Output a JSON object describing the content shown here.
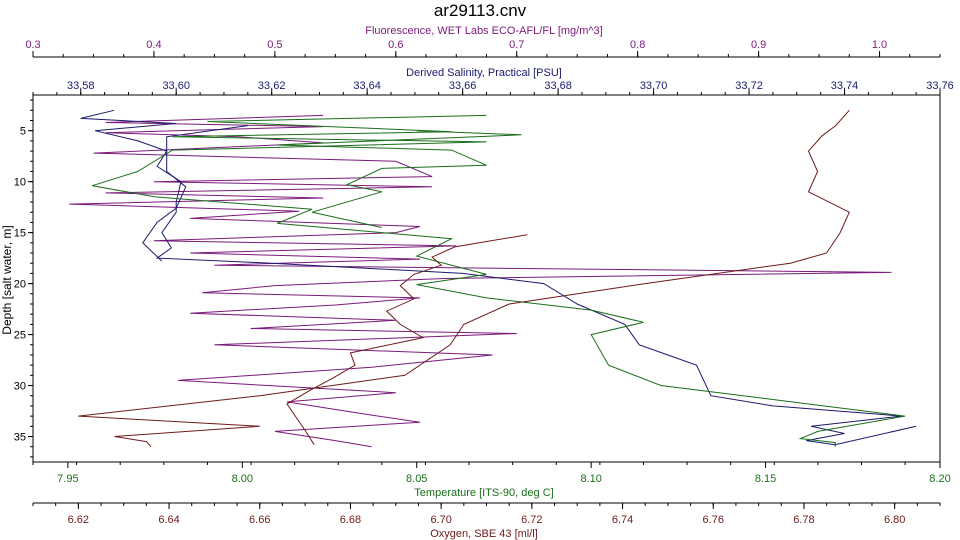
{
  "chart_data": {
    "type": "line",
    "title": "ar29113.cnv",
    "colors": {
      "fluorescence": "#7b1a7b",
      "salinity": "#1a1a6e",
      "temperature": "#1a6e1a",
      "oxygen": "#6e1a1a"
    },
    "y_axis": {
      "label": "Depth [salt water, m]",
      "range": [
        37.5,
        1.5
      ],
      "ticks": [
        5,
        10,
        15,
        20,
        25,
        30,
        35
      ],
      "tick_labels": [
        "5",
        "10",
        "15",
        "20",
        "25",
        "30",
        "35"
      ]
    },
    "x_axes": {
      "fluorescence": {
        "label": "Fluorescence, WET Labs ECO-AFL/FL [mg/m^3]",
        "range": [
          0.3,
          1.05
        ],
        "ticks": [
          0.3,
          0.4,
          0.5,
          0.6,
          0.7,
          0.8,
          0.9,
          1.0
        ],
        "tick_labels": [
          "0.3",
          "0.4",
          "0.5",
          "0.6",
          "0.7",
          "0.8",
          "0.9",
          "1.0"
        ]
      },
      "salinity": {
        "label": "Derived Salinity, Practical [PSU]",
        "range": [
          33.57,
          33.76
        ],
        "ticks": [
          33.58,
          33.6,
          33.62,
          33.64,
          33.66,
          33.68,
          33.7,
          33.72,
          33.74,
          33.76
        ],
        "tick_labels": [
          "33,58",
          "33,60",
          "33,62",
          "33,64",
          "33,66",
          "33,68",
          "33,70",
          "33,72",
          "33,74",
          "33,76"
        ]
      },
      "temperature": {
        "label": "Temperature [ITS-90, deg C]",
        "range": [
          7.94,
          8.2
        ],
        "ticks": [
          7.95,
          8.0,
          8.05,
          8.1,
          8.15,
          8.2
        ],
        "tick_labels": [
          "7.95",
          "8.00",
          "8.05",
          "8.10",
          "8.15",
          "8.20"
        ]
      },
      "oxygen": {
        "label": "Oxygen, SBE 43 [ml/l]",
        "range": [
          6.61,
          6.81
        ],
        "ticks": [
          6.62,
          6.64,
          6.66,
          6.68,
          6.7,
          6.72,
          6.74,
          6.76,
          6.78,
          6.8
        ],
        "tick_labels": [
          "6.62",
          "6.64",
          "6.66",
          "6.68",
          "6.70",
          "6.72",
          "6.74",
          "6.76",
          "6.78",
          "6.80"
        ]
      }
    },
    "series": [
      {
        "key": "fluorescence",
        "points": [
          [
            0.54,
            3.5
          ],
          [
            0.36,
            4.2
          ],
          [
            0.54,
            4.6
          ],
          [
            0.36,
            5.2
          ],
          [
            0.47,
            5.6
          ],
          [
            0.54,
            6.2
          ],
          [
            0.35,
            7.2
          ],
          [
            0.6,
            8.0
          ],
          [
            0.63,
            9.5
          ],
          [
            0.4,
            10.0
          ],
          [
            0.63,
            10.5
          ],
          [
            0.36,
            11.1
          ],
          [
            0.54,
            11.6
          ],
          [
            0.33,
            12.2
          ],
          [
            0.52,
            12.9
          ],
          [
            0.43,
            13.6
          ],
          [
            0.62,
            14.4
          ],
          [
            0.6,
            15.0
          ],
          [
            0.4,
            15.8
          ],
          [
            0.65,
            16.3
          ],
          [
            0.43,
            17.0
          ],
          [
            0.62,
            17.6
          ],
          [
            0.45,
            18.2
          ],
          [
            1.01,
            18.9
          ],
          [
            0.64,
            19.5
          ],
          [
            0.5,
            20.2
          ],
          [
            0.44,
            20.9
          ],
          [
            0.62,
            21.4
          ],
          [
            0.55,
            22.1
          ],
          [
            0.43,
            22.9
          ],
          [
            0.6,
            23.6
          ],
          [
            0.48,
            24.4
          ],
          [
            0.7,
            24.9
          ],
          [
            0.45,
            26.0
          ],
          [
            0.68,
            27.0
          ],
          [
            0.58,
            28.2
          ],
          [
            0.42,
            29.5
          ],
          [
            0.6,
            30.7
          ],
          [
            0.51,
            31.6
          ],
          [
            0.58,
            32.9
          ],
          [
            0.62,
            33.6
          ],
          [
            0.5,
            34.5
          ],
          [
            0.55,
            35.4
          ],
          [
            0.58,
            36.0
          ]
        ]
      },
      {
        "key": "salinity",
        "points": [
          [
            33.587,
            3.0
          ],
          [
            33.58,
            3.8
          ],
          [
            33.6,
            4.3
          ],
          [
            33.583,
            5.0
          ],
          [
            33.592,
            6.0
          ],
          [
            33.598,
            7.0
          ],
          [
            33.596,
            8.5
          ],
          [
            33.601,
            10.0
          ],
          [
            33.6,
            12.0
          ],
          [
            33.6,
            13.0
          ],
          [
            33.597,
            15.0
          ],
          [
            33.599,
            16.5
          ],
          [
            33.596,
            17.5
          ],
          [
            33.62,
            18.0
          ],
          [
            33.66,
            19.0
          ],
          [
            33.677,
            20.0
          ],
          [
            33.684,
            22.0
          ],
          [
            33.694,
            24.0
          ],
          [
            33.697,
            26.0
          ],
          [
            33.703,
            27.0
          ],
          [
            33.709,
            28.0
          ],
          [
            33.712,
            31.0
          ],
          [
            33.725,
            32.0
          ],
          [
            33.752,
            33.0
          ],
          [
            33.733,
            34.0
          ],
          [
            33.74,
            34.7
          ],
          [
            33.732,
            35.4
          ],
          [
            33.738,
            35.8
          ],
          [
            33.755,
            34.0
          ]
        ]
      },
      {
        "key": "temperature",
        "points": [
          [
            8.07,
            3.5
          ],
          [
            7.99,
            4.1
          ],
          [
            8.06,
            5.1
          ],
          [
            7.98,
            5.6
          ],
          [
            8.07,
            6.1
          ],
          [
            7.98,
            6.9
          ],
          [
            7.97,
            9.0
          ],
          [
            7.957,
            10.4
          ],
          [
            7.975,
            11.5
          ],
          [
            8.02,
            12.7
          ],
          [
            8.01,
            14.1
          ],
          [
            8.06,
            15.6
          ],
          [
            8.05,
            17.3
          ],
          [
            8.07,
            19.1
          ],
          [
            8.05,
            20.1
          ],
          [
            8.07,
            21.4
          ],
          [
            8.1,
            22.6
          ],
          [
            8.115,
            23.8
          ],
          [
            8.1,
            25.0
          ],
          [
            8.105,
            28.0
          ],
          [
            8.12,
            30.0
          ],
          [
            8.19,
            33.0
          ],
          [
            8.165,
            34.5
          ],
          [
            8.16,
            35.2
          ],
          [
            8.17,
            35.6
          ],
          [
            8.17,
            36.0
          ]
        ]
      },
      {
        "key": "oxygen",
        "points": [
          [
            6.79,
            3.0
          ],
          [
            6.787,
            4.5
          ],
          [
            6.784,
            5.5
          ],
          [
            6.781,
            7.0
          ],
          [
            6.783,
            9.0
          ],
          [
            6.781,
            11.0
          ],
          [
            6.79,
            13.0
          ],
          [
            6.788,
            15.0
          ],
          [
            6.785,
            17.0
          ],
          [
            6.777,
            18.0
          ],
          [
            6.745,
            20.0
          ],
          [
            6.715,
            22.0
          ],
          [
            6.705,
            24.0
          ],
          [
            6.702,
            26.0
          ],
          [
            6.692,
            29.0
          ],
          [
            6.66,
            31.0
          ],
          [
            6.62,
            33.0
          ],
          [
            6.66,
            34.0
          ],
          [
            6.628,
            35.0
          ],
          [
            6.635,
            35.5
          ],
          [
            6.636,
            36.0
          ]
        ]
      },
      {
        "key": "salinity",
        "points": [
          [
            33.615,
            4.5
          ],
          [
            33.598,
            5.6
          ],
          [
            33.598,
            7.0
          ],
          [
            33.598,
            9.0
          ],
          [
            33.602,
            10.5
          ],
          [
            33.6,
            12.6
          ],
          [
            33.596,
            14.0
          ],
          [
            33.593,
            16.0
          ],
          [
            33.597,
            17.8
          ]
        ]
      },
      {
        "key": "temperature",
        "points": [
          [
            8.05,
            5.0
          ],
          [
            8.08,
            5.4
          ],
          [
            8.01,
            6.4
          ],
          [
            8.06,
            6.9
          ],
          [
            8.07,
            8.4
          ],
          [
            8.04,
            8.7
          ],
          [
            8.03,
            10.3
          ],
          [
            8.04,
            11.0
          ],
          [
            8.02,
            13.0
          ],
          [
            8.04,
            14.5
          ]
        ]
      },
      {
        "key": "oxygen",
        "points": [
          [
            6.719,
            15.2
          ],
          [
            6.703,
            16.4
          ],
          [
            6.698,
            17.4
          ],
          [
            6.7,
            18.2
          ],
          [
            6.694,
            19.1
          ],
          [
            6.691,
            20.2
          ],
          [
            6.694,
            21.5
          ],
          [
            6.688,
            22.7
          ],
          [
            6.691,
            24.0
          ],
          [
            6.696,
            25.3
          ],
          [
            6.68,
            26.8
          ],
          [
            6.681,
            28.0
          ],
          [
            6.676,
            29.3
          ],
          [
            6.671,
            30.5
          ],
          [
            6.666,
            31.8
          ],
          [
            6.668,
            33.1
          ],
          [
            6.67,
            34.4
          ],
          [
            6.672,
            35.8
          ]
        ]
      }
    ]
  }
}
